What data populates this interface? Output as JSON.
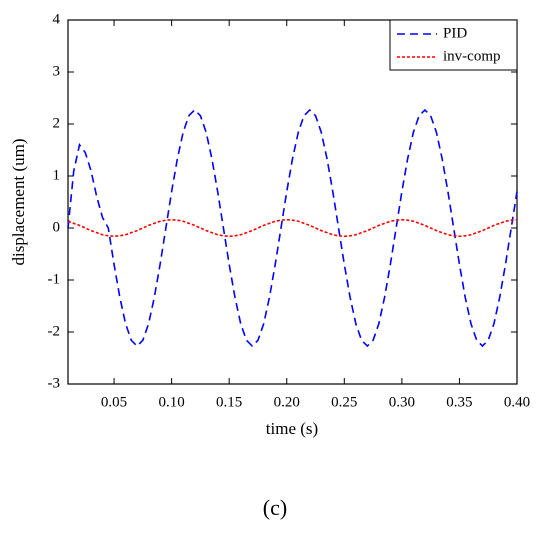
{
  "chart_data": {
    "type": "line",
    "xlabel": "time (s)",
    "ylabel": "displacement (um)",
    "caption": "(c)",
    "x": [
      0.01,
      0.015,
      0.02,
      0.025,
      0.03,
      0.035,
      0.04,
      0.045,
      0.05,
      0.055,
      0.06,
      0.065,
      0.07,
      0.075,
      0.08,
      0.085,
      0.09,
      0.095,
      0.1,
      0.105,
      0.11,
      0.115,
      0.12,
      0.125,
      0.13,
      0.135,
      0.14,
      0.145,
      0.15,
      0.155,
      0.16,
      0.165,
      0.17,
      0.175,
      0.18,
      0.185,
      0.19,
      0.195,
      0.2,
      0.205,
      0.21,
      0.215,
      0.22,
      0.225,
      0.23,
      0.235,
      0.24,
      0.245,
      0.25,
      0.255,
      0.26,
      0.265,
      0.27,
      0.275,
      0.28,
      0.285,
      0.29,
      0.295,
      0.3,
      0.305,
      0.31,
      0.315,
      0.32,
      0.325,
      0.33,
      0.335,
      0.34,
      0.345,
      0.35,
      0.355,
      0.36,
      0.365,
      0.37,
      0.375,
      0.38,
      0.385,
      0.39,
      0.395,
      0.4
    ],
    "series": [
      {
        "name": "PID",
        "color": "#0000ff",
        "dash": "8,5",
        "values": [
          0,
          1.1,
          1.6,
          1.45,
          1.1,
          0.6,
          0.2,
          0,
          -0.7,
          -1.33,
          -1.84,
          -2.16,
          -2.27,
          -2.16,
          -1.84,
          -1.33,
          -0.7,
          0,
          0.7,
          1.33,
          1.84,
          2.16,
          2.27,
          2.16,
          1.84,
          1.33,
          0.7,
          0,
          -0.7,
          -1.33,
          -1.84,
          -2.16,
          -2.27,
          -2.16,
          -1.84,
          -1.33,
          -0.7,
          0,
          0.7,
          1.33,
          1.84,
          2.16,
          2.27,
          2.16,
          1.84,
          1.33,
          0.7,
          0,
          -0.7,
          -1.33,
          -1.84,
          -2.16,
          -2.27,
          -2.16,
          -1.84,
          -1.33,
          -0.7,
          0,
          0.7,
          1.33,
          1.84,
          2.16,
          2.27,
          2.16,
          1.84,
          1.33,
          0.7,
          0,
          -0.7,
          -1.33,
          -1.84,
          -2.16,
          -2.27,
          -2.16,
          -1.84,
          -1.33,
          -0.7,
          0,
          0.7
        ]
      },
      {
        "name": "inv-comp",
        "color": "#ff0000",
        "dash": "3,2",
        "values": [
          0.13,
          0.09,
          0.05,
          0,
          -0.05,
          -0.09,
          -0.13,
          -0.15,
          -0.16,
          -0.15,
          -0.13,
          -0.09,
          -0.05,
          0,
          0.05,
          0.09,
          0.13,
          0.15,
          0.16,
          0.15,
          0.13,
          0.09,
          0.05,
          0,
          -0.05,
          -0.09,
          -0.13,
          -0.15,
          -0.16,
          -0.15,
          -0.13,
          -0.09,
          -0.05,
          0,
          0.05,
          0.09,
          0.13,
          0.15,
          0.16,
          0.15,
          0.13,
          0.09,
          0.05,
          0,
          -0.05,
          -0.09,
          -0.13,
          -0.15,
          -0.16,
          -0.15,
          -0.13,
          -0.09,
          -0.05,
          0,
          0.05,
          0.09,
          0.13,
          0.15,
          0.16,
          0.15,
          0.13,
          0.09,
          0.05,
          0,
          -0.05,
          -0.09,
          -0.13,
          -0.15,
          -0.16,
          -0.15,
          -0.13,
          -0.09,
          -0.05,
          0,
          0.05,
          0.09,
          0.13,
          0.15,
          0.16
        ]
      }
    ],
    "xlim": [
      0.01,
      0.4
    ],
    "xticks": [
      0.05,
      {
        "value": 0.1,
        "label": "0.10"
      },
      0.15,
      {
        "value": 0.2,
        "label": "0.20"
      },
      0.25,
      {
        "value": 0.3,
        "label": "0.30"
      },
      0.35,
      {
        "value": 0.4,
        "label": "0.40"
      }
    ],
    "ylim": [
      -3,
      4
    ],
    "yticks": [
      -3,
      -2,
      -1,
      0,
      1,
      2,
      3,
      4
    ],
    "legend": "upper right",
    "grid": false
  }
}
